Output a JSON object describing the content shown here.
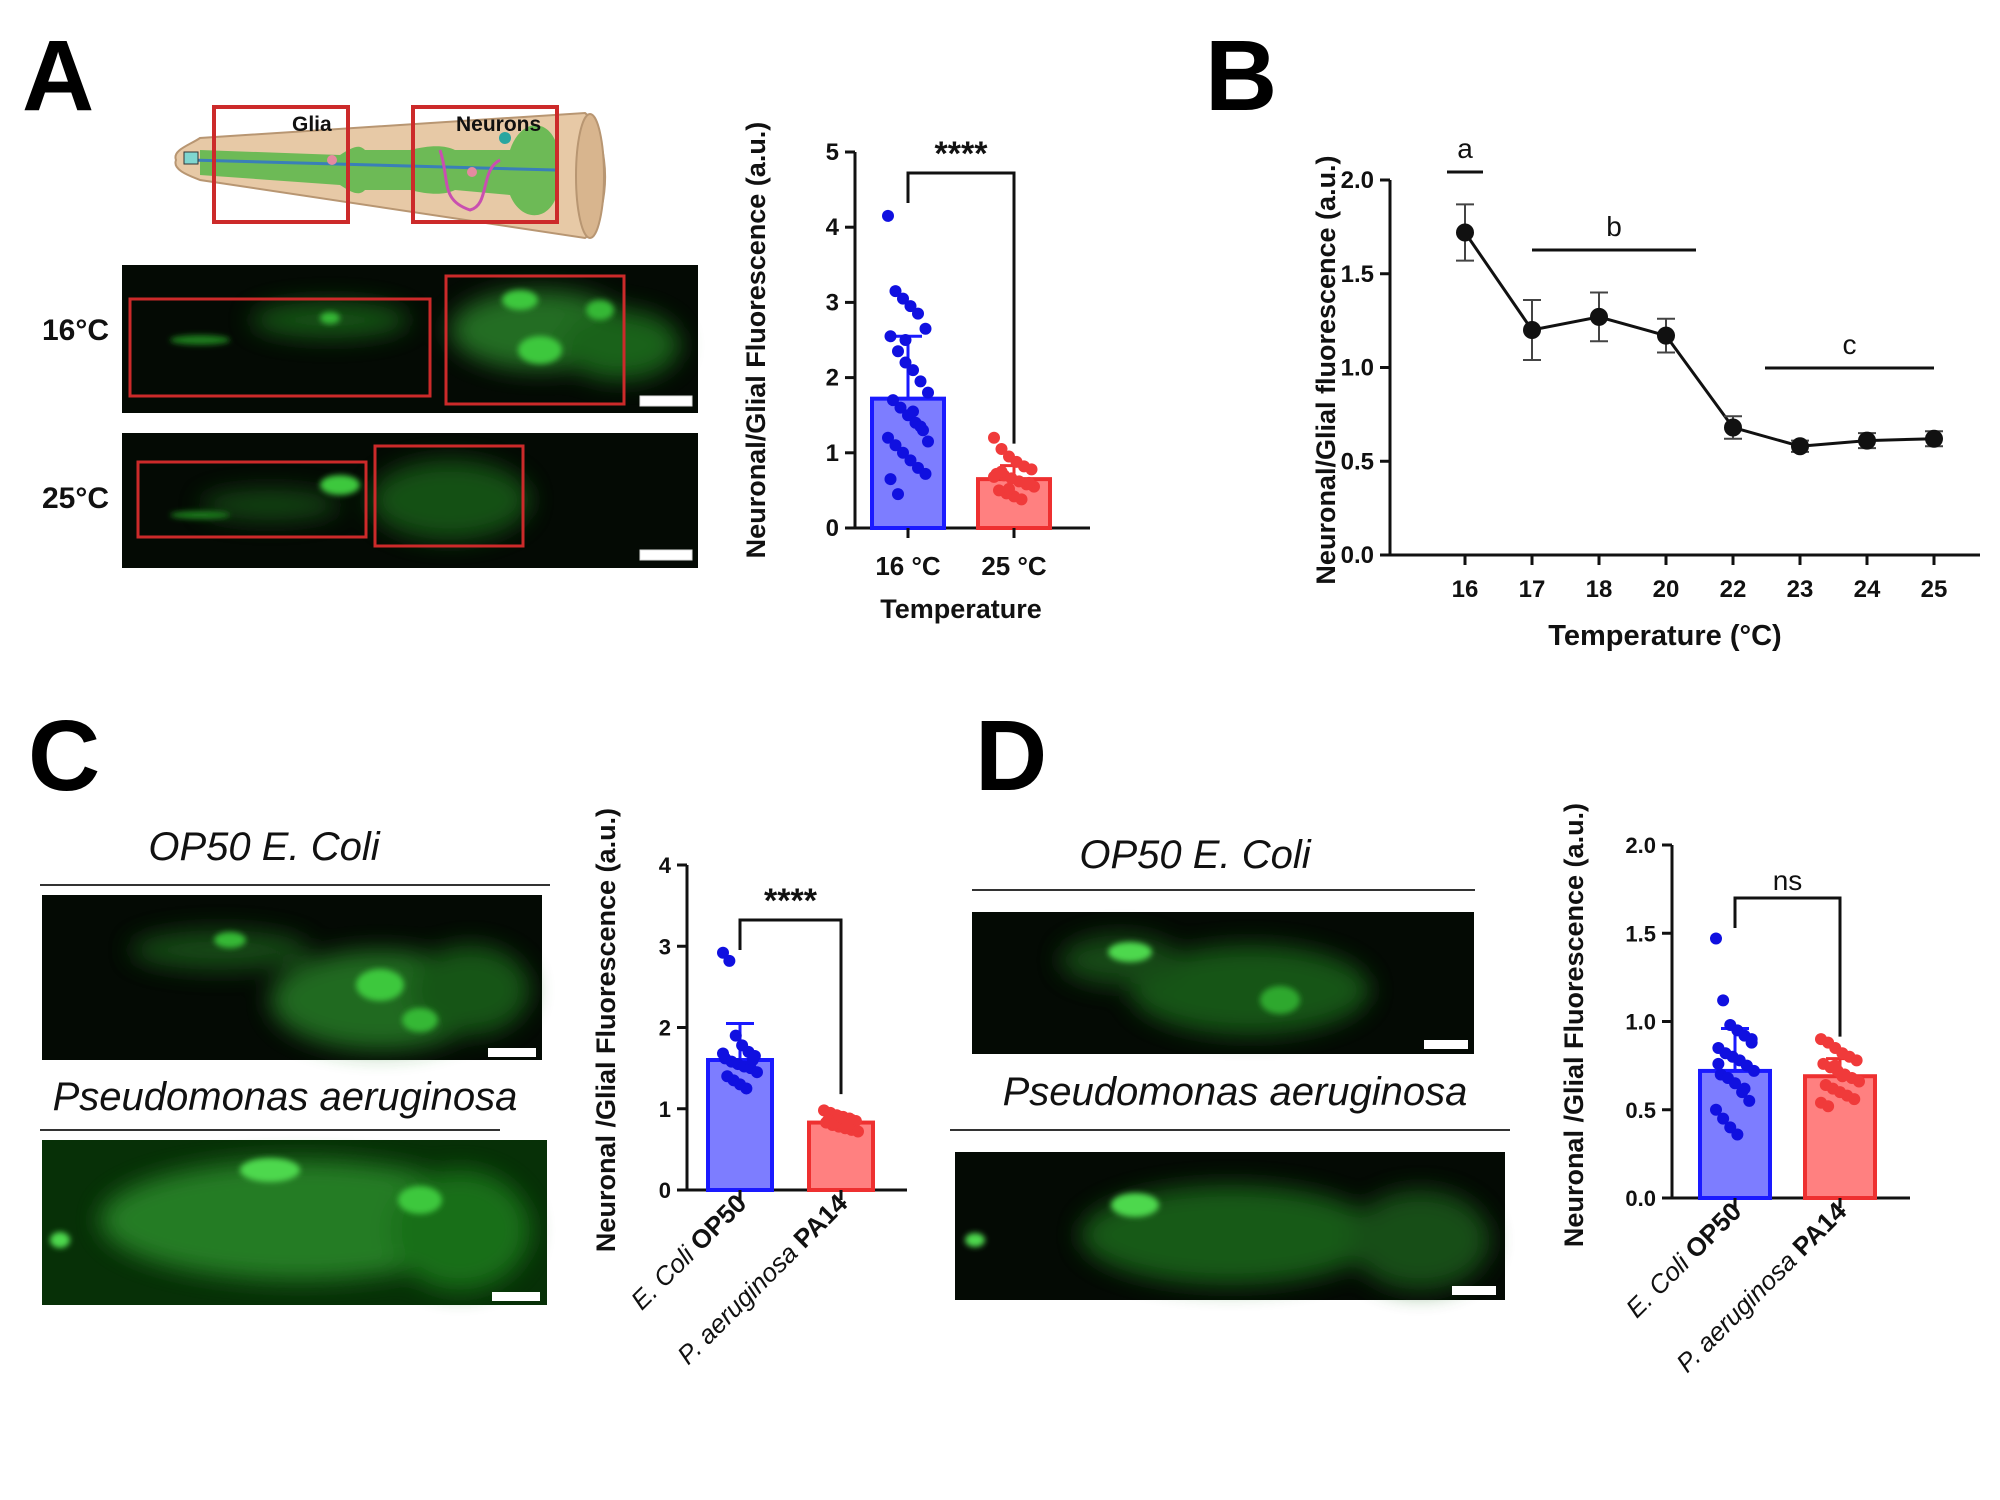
{
  "panels": {
    "A": {
      "letter": "A",
      "schematic": {
        "glia_label": "Glia",
        "neurons_label": "Neurons"
      },
      "image_labels": [
        "16°C",
        "25°C"
      ],
      "scale_bar": "10 µm"
    },
    "B": {
      "letter": "B"
    },
    "C": {
      "letter": "C",
      "condition_labels": [
        "OP50 E. Coli",
        "Pseudomonas aeruginosa"
      ],
      "scale_bar": "10 µm"
    },
    "D": {
      "letter": "D",
      "condition_labels": [
        "OP50 E. Coli",
        "Pseudomonas aeruginosa"
      ],
      "scale_bar": "10 µm"
    }
  },
  "colors": {
    "blue_fill": "#7d7dff",
    "blue_edge": "#1a1aff",
    "blue_dot": "#1010e0",
    "red_fill": "#ff8080",
    "red_edge": "#ee3030",
    "red_dot": "#f03a3a",
    "micrograph_bg": "#040a04",
    "micrograph_green": "#3cc83c",
    "roi_box": "#cc2a2a"
  },
  "chart_data": [
    {
      "id": "A",
      "type": "bar",
      "ylabel": "Neuronal/Glial Fluorescence (a.u.)",
      "xlabel": "Temperature",
      "categories": [
        "16 °C",
        "25 °C"
      ],
      "values": [
        1.72,
        0.65
      ],
      "errors": [
        0.83,
        0.18
      ],
      "ylim": [
        0,
        5
      ],
      "yticks": [
        "0",
        "1",
        "2",
        "3",
        "4",
        "5"
      ],
      "significance": "****",
      "points": [
        [
          4.15,
          3.15,
          3.05,
          2.95,
          2.85,
          2.65,
          2.55,
          2.35,
          2.2,
          2.1,
          1.95,
          1.8,
          1.7,
          1.6,
          1.5,
          1.4,
          1.3,
          1.2,
          1.1,
          1.0,
          0.9,
          0.8,
          0.72,
          0.65,
          0.45,
          2.5,
          1.55,
          1.35,
          1.15
        ],
        [
          1.2,
          1.05,
          0.95,
          0.88,
          0.82,
          0.78,
          0.72,
          0.7,
          0.66,
          0.62,
          0.58,
          0.55,
          0.5,
          0.46,
          0.42,
          0.38,
          0.6,
          0.68,
          0.75,
          0.52
        ]
      ]
    },
    {
      "id": "B",
      "type": "line",
      "ylabel": "Neuronal/Glial fluorescence (a.u.)",
      "xlabel": "Temperature (°C)",
      "categories": [
        "16",
        "17",
        "18",
        "20",
        "22",
        "23",
        "24",
        "25"
      ],
      "values": [
        1.72,
        1.2,
        1.27,
        1.17,
        0.68,
        0.58,
        0.61,
        0.62
      ],
      "errors": [
        0.15,
        0.16,
        0.13,
        0.09,
        0.06,
        0.03,
        0.04,
        0.04
      ],
      "ylim": [
        0,
        2.0
      ],
      "yticks": [
        "0.0",
        "0.5",
        "1.0",
        "1.5",
        "2.0"
      ],
      "groups": [
        {
          "label": "a",
          "from": 0,
          "to": 0
        },
        {
          "label": "b",
          "from": 1,
          "to": 3
        },
        {
          "label": "c",
          "from": 5,
          "to": 7
        }
      ]
    },
    {
      "id": "C",
      "type": "bar",
      "ylabel": "Neuronal /Glial Fluorescence (a.u.)",
      "categories_italic": [
        "E. Coli ",
        "P. aeruginosa "
      ],
      "categories_bold": [
        "OP50",
        "PA14"
      ],
      "values": [
        1.6,
        0.83
      ],
      "errors": [
        0.45,
        0.08
      ],
      "ylim": [
        0,
        4
      ],
      "yticks": [
        "0",
        "1",
        "2",
        "3",
        "4"
      ],
      "significance": "****",
      "points": [
        [
          2.92,
          2.82,
          1.9,
          1.78,
          1.7,
          1.65,
          1.62,
          1.58,
          1.55,
          1.52,
          1.5,
          1.45,
          1.4,
          1.35,
          1.3,
          1.25,
          1.6,
          1.68
        ],
        [
          0.98,
          0.95,
          0.92,
          0.9,
          0.88,
          0.85,
          0.83,
          0.8,
          0.78,
          0.76,
          0.74,
          0.72,
          0.86,
          0.82,
          0.9,
          0.79
        ]
      ]
    },
    {
      "id": "D",
      "type": "bar",
      "ylabel": "Neuronal /Glial Fluorescence (a.u.)",
      "categories_italic": [
        "E. Coli ",
        "P. aeruginosa "
      ],
      "categories_bold": [
        "OP50",
        "PA14"
      ],
      "values": [
        0.72,
        0.69
      ],
      "errors": [
        0.24,
        0.1
      ],
      "ylim": [
        0,
        2.0
      ],
      "yticks": [
        "0.0",
        "0.5",
        "1.0",
        "1.5",
        "2.0"
      ],
      "significance": "ns",
      "points": [
        [
          1.47,
          1.12,
          0.98,
          0.95,
          0.92,
          0.88,
          0.85,
          0.82,
          0.8,
          0.78,
          0.75,
          0.72,
          0.7,
          0.68,
          0.65,
          0.6,
          0.55,
          0.5,
          0.45,
          0.4,
          0.36,
          0.62,
          0.9,
          0.76
        ],
        [
          0.9,
          0.88,
          0.85,
          0.82,
          0.8,
          0.78,
          0.76,
          0.74,
          0.72,
          0.7,
          0.68,
          0.66,
          0.64,
          0.62,
          0.6,
          0.58,
          0.56,
          0.54,
          0.52,
          0.75,
          0.69
        ]
      ]
    }
  ]
}
